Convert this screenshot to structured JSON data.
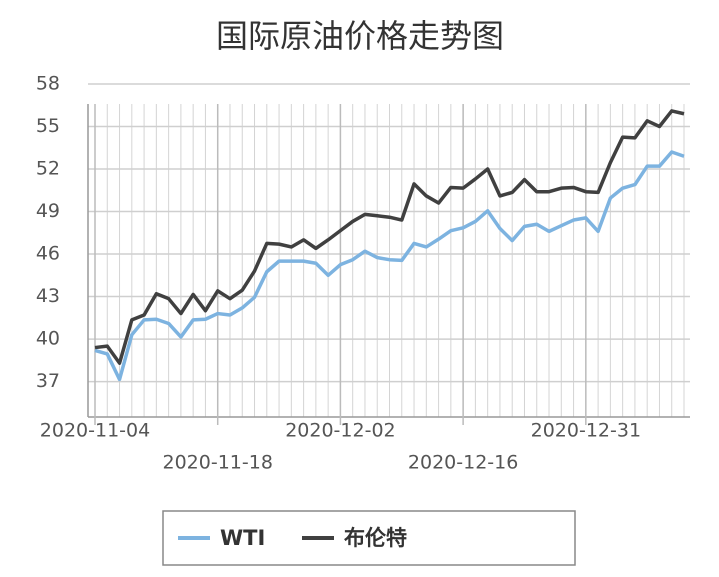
{
  "chart_data": {
    "type": "line",
    "title": "国际原油价格走势图",
    "categories": [
      "2020-11-04",
      null,
      null,
      null,
      null,
      null,
      null,
      null,
      null,
      null,
      "2020-11-18",
      null,
      null,
      null,
      null,
      null,
      null,
      null,
      null,
      null,
      "2020-12-02",
      null,
      null,
      null,
      null,
      null,
      null,
      null,
      null,
      null,
      "2020-12-16",
      null,
      null,
      null,
      null,
      null,
      null,
      null,
      null,
      null,
      "2020-12-31",
      null,
      null,
      null,
      null,
      null,
      null,
      null,
      null
    ],
    "series": [
      {
        "name": "WTI",
        "color": "#7db3e0",
        "values": [
          39.2,
          38.95,
          37.15,
          40.3,
          41.35,
          41.4,
          41.1,
          40.15,
          41.35,
          41.4,
          41.8,
          41.7,
          42.2,
          42.95,
          44.75,
          45.5,
          45.5,
          45.5,
          45.35,
          44.5,
          45.25,
          45.6,
          46.2,
          45.75,
          45.6,
          45.55,
          46.75,
          46.5,
          47.05,
          47.65,
          47.85,
          48.3,
          49.05,
          47.8,
          46.95,
          47.95,
          48.1,
          47.6,
          48.0,
          48.4,
          48.55,
          47.6,
          49.95,
          50.65,
          50.9,
          52.2,
          52.2,
          53.2,
          52.9
        ]
      },
      {
        "name": "布伦特",
        "color": "#404040",
        "values": [
          39.4,
          39.5,
          38.3,
          41.35,
          41.7,
          43.2,
          42.85,
          41.8,
          43.15,
          42.0,
          43.4,
          42.85,
          43.45,
          44.8,
          46.75,
          46.7,
          46.5,
          47.0,
          46.4,
          47.0,
          47.65,
          48.3,
          48.8,
          48.7,
          48.6,
          48.4,
          50.95,
          50.1,
          49.6,
          50.7,
          50.65,
          51.3,
          52.0,
          50.1,
          50.35,
          51.25,
          50.4,
          50.4,
          50.65,
          50.7,
          50.4,
          50.35,
          52.45,
          54.25,
          54.2,
          55.4,
          55.0,
          56.1,
          55.9
        ]
      }
    ],
    "ylim": [
      34.5,
      58
    ],
    "yticks": [
      37,
      40,
      43,
      46,
      49,
      52,
      55,
      58
    ],
    "grid": true
  }
}
